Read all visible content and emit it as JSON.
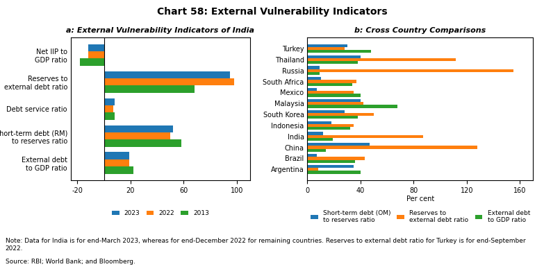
{
  "title": "Chart 58: External Vulnerability Indicators",
  "annotations": [
    "Note: Data for India is for end-March 2023, whereas for end-December 2022 for remaining countries. Reserves to external debt ratio for Turkey is for end-September 2022.",
    "Source: RBI; World Bank; and Bloomberg."
  ],
  "chart_data": [
    {
      "type": "bar",
      "orientation": "horizontal",
      "title": "a: External Vulnerability Indicators of India",
      "categories": [
        "External debt\nto GDP ratio",
        "Short-term debt (RM)\nto reserves ratio",
        "Debt service ratio",
        "Reserves to\nexternal debt ratio",
        "Net IIP to\nGDP ratio"
      ],
      "series": [
        {
          "name": "2023",
          "values": [
            19,
            52,
            8,
            95,
            -12
          ]
        },
        {
          "name": "2022",
          "values": [
            19,
            50,
            7,
            98,
            -12
          ]
        },
        {
          "name": "2013",
          "values": [
            22,
            58,
            8,
            68,
            -18
          ]
        }
      ],
      "xlim": [
        -25,
        110
      ],
      "xticks": [
        -20,
        20,
        60,
        100
      ],
      "grid": false,
      "legend": "lower center"
    },
    {
      "type": "bar",
      "orientation": "horizontal",
      "title": "b: Cross Country Comparisons",
      "xlabel": "Per cent",
      "categories": [
        "Argentina",
        "Brazil",
        "China",
        "India",
        "Indonesia",
        "South Korea",
        "Malaysia",
        "Mexico",
        "South Africa",
        "Russia",
        "Thailand",
        "Turkey"
      ],
      "series": [
        {
          "name": "Short-term debt (OM)\nto reserves ratio",
          "values": [
            35,
            7,
            47,
            12,
            18,
            28,
            40,
            7,
            10,
            9,
            40,
            30
          ]
        },
        {
          "name": "Reserves to\nexternal debt ratio",
          "values": [
            8,
            43,
            128,
            87,
            35,
            50,
            42,
            35,
            37,
            155,
            112,
            28
          ]
        },
        {
          "name": "External debt\nto GDP ratio",
          "values": [
            40,
            36,
            14,
            19,
            32,
            38,
            68,
            40,
            34,
            9,
            38,
            48
          ]
        }
      ],
      "xlim": [
        0,
        170
      ],
      "xticks": [
        0,
        40,
        80,
        120,
        160
      ],
      "grid": false,
      "legend": "lower center"
    }
  ]
}
